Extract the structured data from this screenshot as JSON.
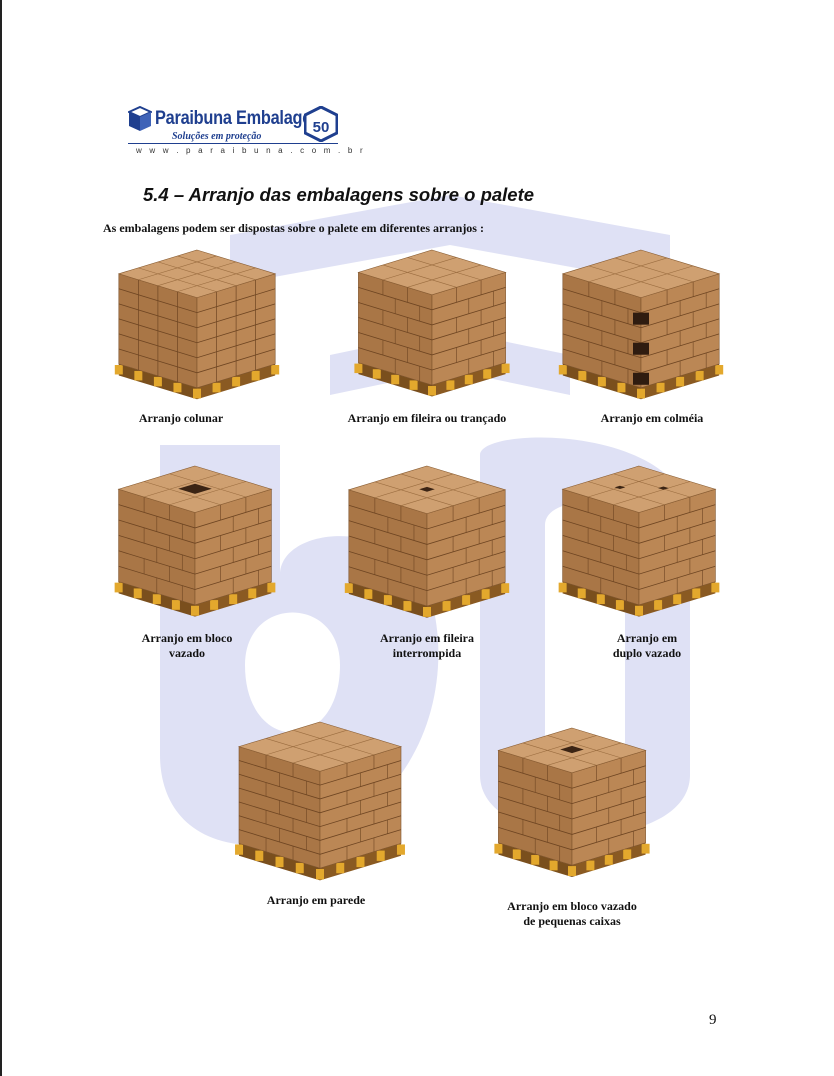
{
  "logo": {
    "name": "Paraibuna Embalagens",
    "tagline": "Soluções em proteção",
    "url": "w w w . p a r a i b u n a . c o m . b r",
    "badge": "50"
  },
  "section_title": "5.4 – Arranjo das embalagens sobre o palete",
  "intro": "As embalagens podem ser dispostas sobre o palete em diferentes arranjos :",
  "arrangements": [
    {
      "line1": "Arranjo colunar",
      "line2": "",
      "pattern": "colunar"
    },
    {
      "line1": "Arranjo em fileira ou trançado",
      "line2": "",
      "pattern": "trancado"
    },
    {
      "line1": "Arranjo em colméia",
      "line2": "",
      "pattern": "colmeia"
    },
    {
      "line1": "Arranjo em bloco",
      "line2": "vazado",
      "pattern": "bloco-vazado"
    },
    {
      "line1": "Arranjo em fileira",
      "line2": "interrompida",
      "pattern": "fileira-interrompida"
    },
    {
      "line1": "Arranjo em",
      "line2": "duplo vazado",
      "pattern": "duplo-vazado"
    },
    {
      "line1": "Arranjo em parede",
      "line2": "",
      "pattern": "parede"
    },
    {
      "line1": "Arranjo em bloco vazado",
      "line2": "de pequenas caixas",
      "pattern": "pequenas-caixas"
    }
  ],
  "page_number": "9",
  "colors": {
    "box_top": "#cfa071",
    "box_left": "#a97646",
    "box_right": "#bb8755",
    "pallet": "#e3a82d",
    "watermark": "#dfe1f5",
    "logo_blue": "#1f3f8f"
  }
}
